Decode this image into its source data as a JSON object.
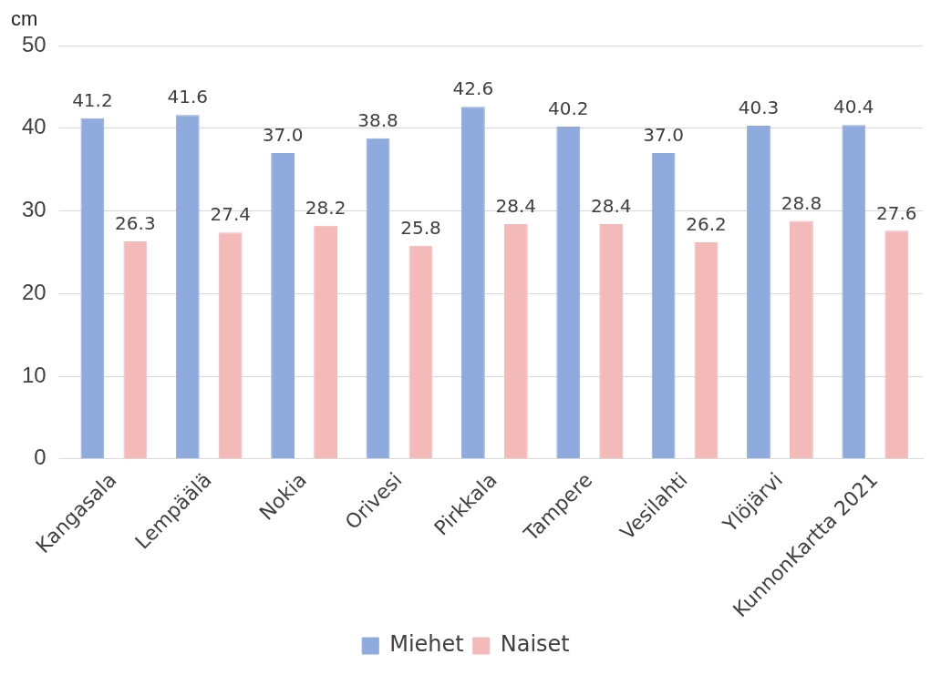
{
  "chart_data": {
    "type": "bar",
    "ylabel": "cm",
    "categories": [
      "Kangasala",
      "Lempäälä",
      "Nokia",
      "Orivesi",
      "Pirkkala",
      "Tampere",
      "Vesilahti",
      "Ylöjärvi",
      "KunnonKartta 2021"
    ],
    "series": [
      {
        "name": "Miehet",
        "color": "#8faadc",
        "values": [
          41.2,
          41.6,
          37.0,
          38.8,
          42.6,
          40.2,
          37.0,
          40.3,
          40.4
        ],
        "value_labels": [
          "41.2",
          "41.6",
          "37.0",
          "38.8",
          "42.6",
          "40.2",
          "37.0",
          "40.3",
          "40.4"
        ]
      },
      {
        "name": "Naiset",
        "color": "#f4b9b9",
        "values": [
          26.3,
          27.4,
          28.2,
          25.8,
          28.4,
          28.4,
          26.2,
          28.8,
          27.6
        ],
        "value_labels": [
          "26.3",
          "27.4",
          "28.2",
          "25.8",
          "28.4",
          "28.4",
          "26.2",
          "28.8",
          "27.6"
        ]
      }
    ],
    "ylim": [
      0,
      50
    ],
    "yticks": [
      0,
      10,
      20,
      30,
      40,
      50
    ],
    "grid": "y",
    "legend": "bottom"
  }
}
